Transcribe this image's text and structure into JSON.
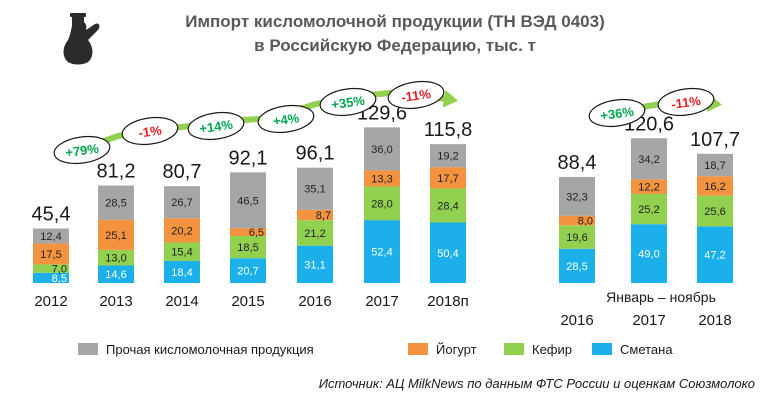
{
  "title_line1": "Импорт кисломолочной продукции (ТН ВЭД 0403)",
  "title_line2": "в Российскую Федерацию, тыс. т",
  "period_label": "Январь – ноябрь",
  "source": "Источник: АЦ MilkNews по данным ФТС России и оценкам Союзмолоко",
  "colors": {
    "other": "#a6a6a6",
    "yogurt": "#f4933f",
    "kefir": "#92d050",
    "smetana": "#1bb0ea",
    "growth": "#00a651",
    "decline": "#e31e24",
    "arrow": "#92d050"
  },
  "chart_data": {
    "type": "bar",
    "stacked": true,
    "unit": "тыс. т",
    "categories": [
      "2012",
      "2013",
      "2014",
      "2015",
      "2016",
      "2017",
      "2018п",
      "2016",
      "2017",
      "2018"
    ],
    "totals": [
      "45,4",
      "81,2",
      "80,7",
      "92,1",
      "96,1",
      "129,6",
      "115,8",
      "88,4",
      "120,6",
      "107,7"
    ],
    "series": [
      {
        "name": "Сметана",
        "key": "smetana",
        "values": [
          8.5,
          14.6,
          18.4,
          20.7,
          31.1,
          52.4,
          50.4,
          28.5,
          49.0,
          47.2
        ],
        "labels": [
          "8,5",
          "14,6",
          "18,4",
          "20,7",
          "31,1",
          "52,4",
          "50,4",
          "28,5",
          "49,0",
          "47,2"
        ]
      },
      {
        "name": "Кефир",
        "key": "kefir",
        "values": [
          7.0,
          13.0,
          15.4,
          18.5,
          21.2,
          28.0,
          28.4,
          19.6,
          25.2,
          25.6
        ],
        "labels": [
          "7,0",
          "13,0",
          "15,4",
          "18,5",
          "21,2",
          "28,0",
          "28,4",
          "19,6",
          "25,2",
          "25,6"
        ]
      },
      {
        "name": "Йогурт",
        "key": "yogurt",
        "values": [
          17.5,
          25.1,
          20.2,
          6.5,
          8.7,
          13.3,
          17.7,
          8.0,
          12.2,
          16.2
        ],
        "labels": [
          "17,5",
          "25,1",
          "20,2",
          "6,5",
          "8,7",
          "13,3",
          "17,7",
          "8,0",
          "12,2",
          "16,2"
        ]
      },
      {
        "name": "Прочая кисломолочная продукция",
        "key": "other",
        "values": [
          12.4,
          28.5,
          26.7,
          46.5,
          35.1,
          36.0,
          19.2,
          32.3,
          34.2,
          18.7
        ],
        "labels": [
          "12,4",
          "28,5",
          "26,7",
          "46,5",
          "35,1",
          "36,0",
          "19,2",
          "32,3",
          "34,2",
          "18,7"
        ]
      }
    ],
    "growth_badges": [
      {
        "text": "+79%",
        "type": "growth",
        "between": [
          0,
          1
        ]
      },
      {
        "text": "-1%",
        "type": "decline",
        "between": [
          1,
          2
        ]
      },
      {
        "text": "+14%",
        "type": "growth",
        "between": [
          2,
          3
        ]
      },
      {
        "text": "+4%",
        "type": "growth",
        "between": [
          3,
          4
        ]
      },
      {
        "text": "+35%",
        "type": "growth",
        "between": [
          4,
          5
        ]
      },
      {
        "text": "-11%",
        "type": "decline",
        "between": [
          5,
          6
        ]
      },
      {
        "text": "+36%",
        "type": "growth",
        "between": [
          7,
          8
        ]
      },
      {
        "text": "-11%",
        "type": "decline",
        "between": [
          8,
          9
        ]
      }
    ],
    "legend": [
      {
        "name": "Прочая кисломолочная продукция",
        "key": "other"
      },
      {
        "name": "Йогурт",
        "key": "yogurt"
      },
      {
        "name": "Кефир",
        "key": "kefir"
      },
      {
        "name": "Сметана",
        "key": "smetana"
      }
    ]
  }
}
